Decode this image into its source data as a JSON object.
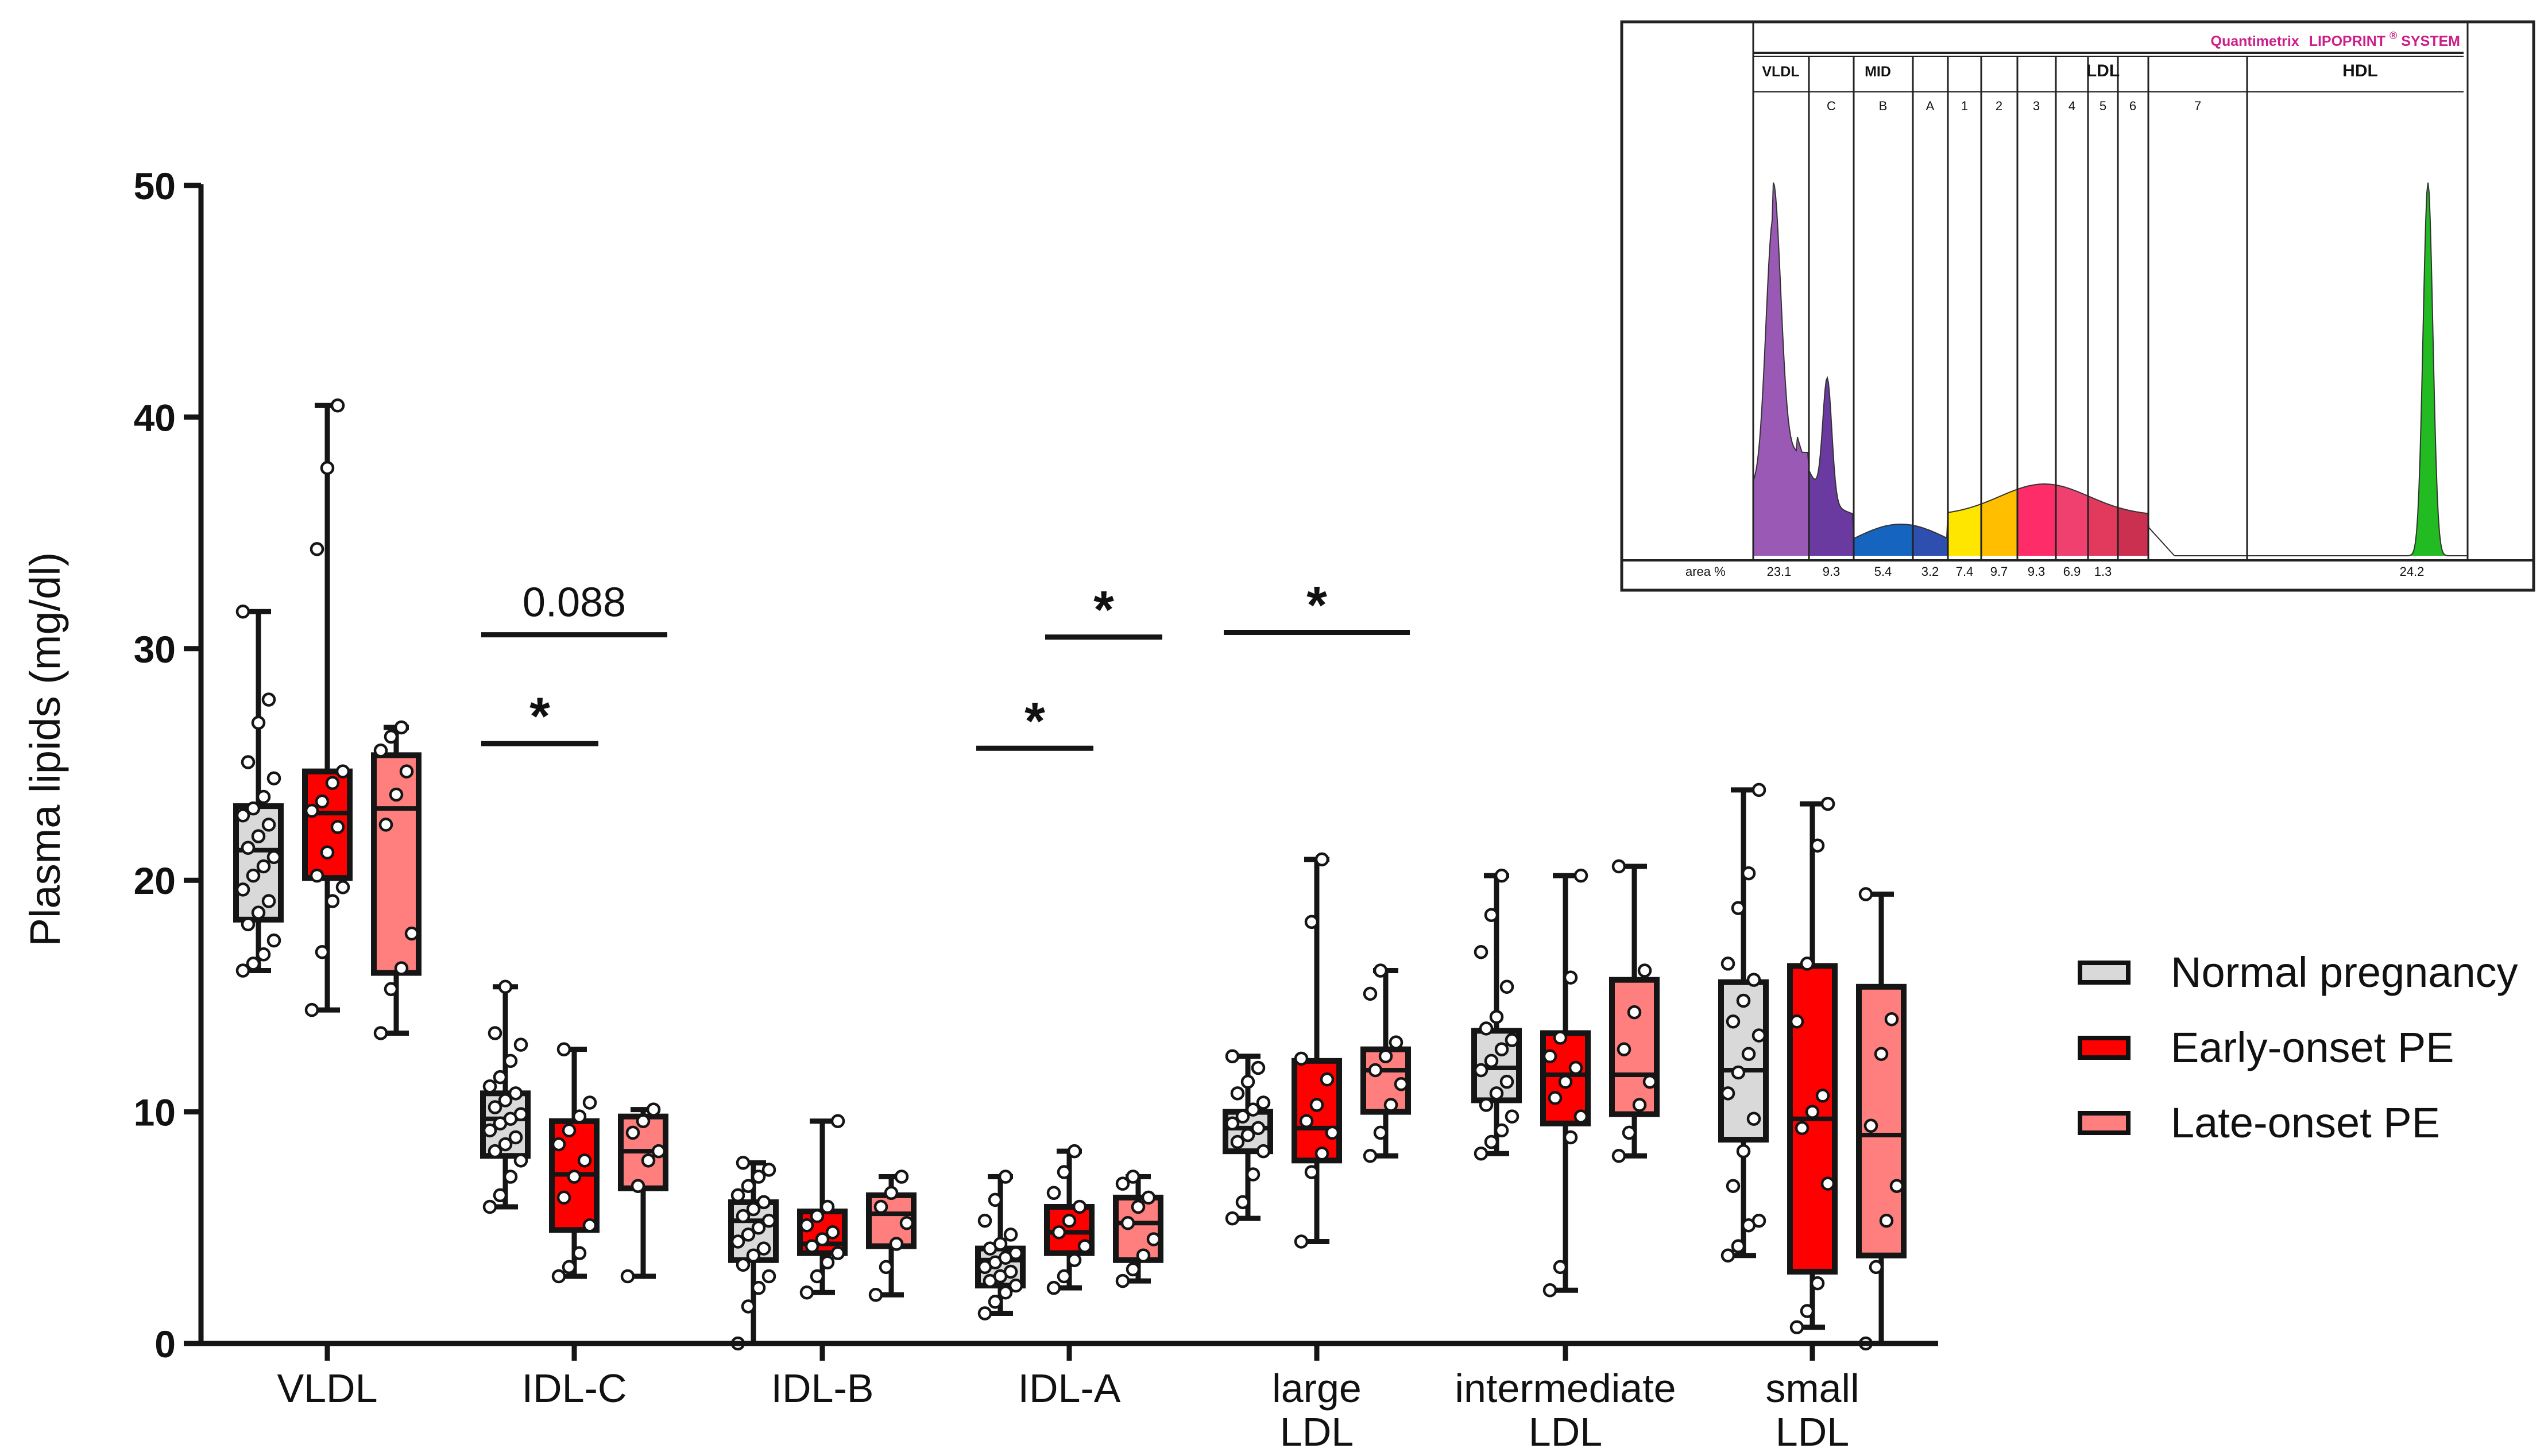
{
  "chart_data": {
    "type": "box",
    "ylabel": "Plasma lipids (mg/dl)",
    "ylim": [
      0,
      50
    ],
    "yticks": [
      0,
      10,
      20,
      30,
      40,
      50
    ],
    "categories": [
      {
        "lines": [
          "VLDL"
        ]
      },
      {
        "lines": [
          "IDL-C"
        ]
      },
      {
        "lines": [
          "IDL-B"
        ]
      },
      {
        "lines": [
          "IDL-A"
        ]
      },
      {
        "lines": [
          "large",
          "LDL"
        ]
      },
      {
        "lines": [
          "intermediate",
          "LDL"
        ]
      },
      {
        "lines": [
          "small",
          "LDL"
        ]
      }
    ],
    "series": [
      {
        "name": "Normal pregnancy",
        "color": "#d9d9d9",
        "boxes": [
          {
            "min": 16.1,
            "q1": 18.3,
            "median": 21.3,
            "q3": 23.2,
            "max": 31.6,
            "points": [
              16.1,
              16.4,
              16.8,
              17.4,
              18.1,
              18.6,
              19.1,
              19.6,
              20.2,
              20.6,
              21.0,
              21.4,
              21.9,
              22.4,
              22.8,
              23.1,
              23.6,
              24.4,
              25.1,
              26.8,
              27.8,
              31.6
            ]
          },
          {
            "min": 5.9,
            "q1": 8.1,
            "median": 9.7,
            "q3": 10.8,
            "max": 15.4,
            "points": [
              5.9,
              6.4,
              7.2,
              7.9,
              8.3,
              8.6,
              8.9,
              9.2,
              9.5,
              9.7,
              9.9,
              10.2,
              10.5,
              10.8,
              11.1,
              11.5,
              12.2,
              12.9,
              13.4,
              15.4
            ]
          },
          {
            "min": 0.0,
            "q1": 3.6,
            "median": 5.3,
            "q3": 6.1,
            "max": 7.8,
            "points": [
              0.0,
              1.6,
              2.4,
              2.9,
              3.4,
              3.8,
              4.1,
              4.4,
              4.7,
              5.0,
              5.3,
              5.5,
              5.8,
              6.1,
              6.4,
              6.8,
              7.2,
              7.5,
              7.8
            ]
          },
          {
            "min": 1.3,
            "q1": 2.5,
            "median": 3.6,
            "q3": 4.1,
            "max": 7.2,
            "points": [
              1.3,
              1.8,
              2.2,
              2.5,
              2.7,
              2.9,
              3.1,
              3.3,
              3.5,
              3.7,
              3.9,
              4.1,
              4.3,
              4.7,
              5.3,
              6.2,
              7.2
            ]
          },
          {
            "min": 5.4,
            "q1": 8.3,
            "median": 9.3,
            "q3": 10.0,
            "max": 12.4,
            "points": [
              5.4,
              6.1,
              7.3,
              8.3,
              8.7,
              9.0,
              9.3,
              9.5,
              9.8,
              10.1,
              10.4,
              10.8,
              11.3,
              11.9,
              12.4
            ]
          },
          {
            "min": 8.2,
            "q1": 10.5,
            "median": 11.9,
            "q3": 13.5,
            "max": 20.2,
            "points": [
              8.2,
              8.7,
              9.2,
              9.8,
              10.3,
              10.8,
              11.3,
              11.8,
              12.2,
              12.7,
              13.1,
              13.6,
              14.1,
              15.4,
              16.9,
              18.5,
              20.2
            ]
          },
          {
            "min": 3.8,
            "q1": 8.8,
            "median": 11.8,
            "q3": 15.6,
            "max": 23.9,
            "points": [
              3.8,
              4.2,
              5.1,
              5.3,
              6.8,
              8.3,
              9.7,
              10.8,
              11.7,
              12.5,
              13.3,
              13.9,
              14.8,
              15.7,
              16.4,
              18.8,
              20.3,
              23.9
            ]
          }
        ]
      },
      {
        "name": "Early-onset PE",
        "color": "#ff0000",
        "boxes": [
          {
            "min": 14.4,
            "q1": 20.1,
            "median": 22.9,
            "q3": 24.7,
            "max": 40.5,
            "points": [
              14.4,
              16.9,
              19.1,
              19.7,
              20.2,
              21.2,
              22.3,
              23.0,
              23.4,
              24.2,
              24.7,
              34.3,
              37.8,
              40.5
            ]
          },
          {
            "min": 2.9,
            "q1": 4.9,
            "median": 7.3,
            "q3": 9.6,
            "max": 12.7,
            "points": [
              2.9,
              3.3,
              3.9,
              5.1,
              6.3,
              7.2,
              7.9,
              8.6,
              9.2,
              9.8,
              10.4,
              12.7
            ]
          },
          {
            "min": 2.2,
            "q1": 3.9,
            "median": 4.3,
            "q3": 5.7,
            "max": 9.6,
            "points": [
              2.2,
              2.9,
              3.5,
              3.9,
              4.2,
              4.5,
              4.8,
              5.1,
              5.5,
              5.9,
              9.6
            ]
          },
          {
            "min": 2.4,
            "q1": 3.9,
            "median": 4.8,
            "q3": 5.9,
            "max": 8.3,
            "points": [
              2.4,
              2.9,
              3.6,
              4.2,
              4.8,
              5.3,
              5.9,
              6.5,
              7.4,
              8.3
            ]
          },
          {
            "min": 4.4,
            "q1": 7.9,
            "median": 9.3,
            "q3": 12.2,
            "max": 20.9,
            "points": [
              4.4,
              7.4,
              8.2,
              9.1,
              9.6,
              10.3,
              11.4,
              12.3,
              18.2,
              20.9
            ]
          },
          {
            "min": 2.3,
            "q1": 9.5,
            "median": 11.6,
            "q3": 13.4,
            "max": 20.2,
            "points": [
              2.3,
              3.3,
              8.9,
              9.8,
              10.6,
              11.3,
              11.9,
              12.4,
              13.2,
              15.8,
              20.2
            ]
          },
          {
            "min": 0.7,
            "q1": 3.1,
            "median": 9.7,
            "q3": 16.3,
            "max": 23.3,
            "points": [
              0.7,
              1.4,
              2.6,
              6.9,
              9.3,
              10.0,
              10.7,
              13.9,
              16.4,
              21.5,
              23.3
            ]
          }
        ]
      },
      {
        "name": "Late-onset PE",
        "color": "#ff7f7f",
        "boxes": [
          {
            "min": 13.4,
            "q1": 16.0,
            "median": 23.1,
            "q3": 25.4,
            "max": 26.6,
            "points": [
              13.4,
              15.3,
              16.2,
              17.7,
              22.4,
              23.7,
              24.7,
              25.6,
              26.2,
              26.6
            ]
          },
          {
            "min": 2.9,
            "q1": 6.7,
            "median": 8.3,
            "q3": 9.8,
            "max": 10.1,
            "points": [
              2.9,
              6.8,
              7.9,
              8.3,
              9.1,
              9.6,
              10.1
            ]
          },
          {
            "min": 2.1,
            "q1": 4.2,
            "median": 5.6,
            "q3": 6.4,
            "max": 7.2,
            "points": [
              2.1,
              3.3,
              4.3,
              5.2,
              5.9,
              6.5,
              7.2
            ]
          },
          {
            "min": 2.7,
            "q1": 3.6,
            "median": 5.2,
            "q3": 6.3,
            "max": 7.2,
            "points": [
              2.7,
              3.2,
              3.8,
              4.5,
              5.2,
              5.9,
              6.3,
              6.9,
              7.2
            ]
          },
          {
            "min": 8.1,
            "q1": 10.0,
            "median": 11.8,
            "q3": 12.7,
            "max": 16.1,
            "points": [
              8.1,
              9.1,
              10.3,
              11.2,
              11.8,
              12.4,
              13.0,
              15.1,
              16.1
            ]
          },
          {
            "min": 8.1,
            "q1": 9.9,
            "median": 11.6,
            "q3": 15.7,
            "max": 20.6,
            "points": [
              8.1,
              9.1,
              10.3,
              11.3,
              12.7,
              14.3,
              16.1,
              20.6
            ]
          },
          {
            "min": 0.0,
            "q1": 3.8,
            "median": 9.0,
            "q3": 15.4,
            "max": 19.4,
            "points": [
              0.0,
              3.3,
              5.3,
              6.8,
              9.4,
              12.5,
              14.0,
              19.4
            ]
          }
        ]
      }
    ],
    "annotations": [
      {
        "text": "0.088",
        "category": 1,
        "from_series": 0,
        "to_series": 2,
        "y": 30.6
      },
      {
        "text": "*",
        "category": 1,
        "from_series": 0,
        "to_series": 1,
        "y": 25.9
      },
      {
        "text": "*",
        "category": 3,
        "from_series": 1,
        "to_series": 2,
        "y": 30.5
      },
      {
        "text": "*",
        "category": 3,
        "from_series": 0,
        "to_series": 1,
        "y": 25.7
      },
      {
        "text": "*",
        "category": 4,
        "from_series": 0,
        "to_series": 2,
        "y": 30.7
      }
    ]
  },
  "inset": {
    "title_prefix": "Quantimetrix",
    "title_brand": "LIPOPRINT",
    "title_mark": "®",
    "title_suffix": "SYSTEM",
    "classes": [
      "VLDL",
      "MID",
      "LDL",
      "HDL"
    ],
    "subfractions": [
      "C",
      "B",
      "A",
      "1",
      "2",
      "3",
      "4",
      "5",
      "6",
      "7"
    ],
    "area_label": "area %",
    "areas": [
      "23.1",
      "9.3",
      "5.4",
      "3.2",
      "7.4",
      "9.7",
      "9.3",
      "6.9",
      "1.3",
      "24.2"
    ]
  }
}
